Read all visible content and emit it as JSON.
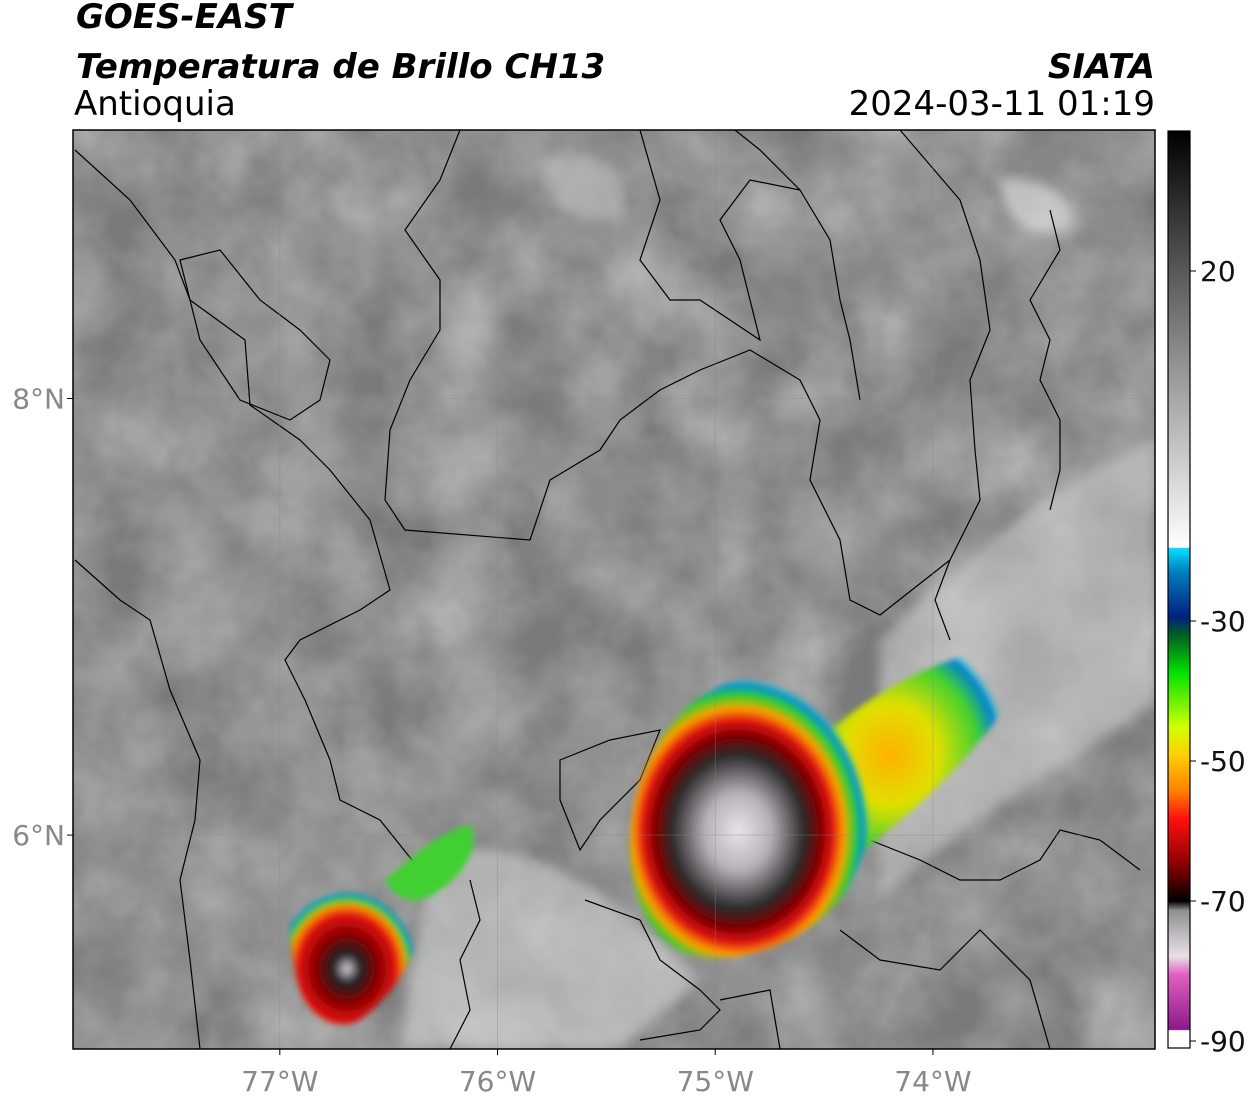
{
  "header": {
    "title": "GOES-EAST",
    "subtitle": "Temperatura de Brillo CH13",
    "region": "Antioquia",
    "brand": "SIATA",
    "datetime": "2024-03-11 01:19"
  },
  "map": {
    "xlim": [
      -77.95,
      -72.98
    ],
    "ylim": [
      5.02,
      9.23
    ],
    "xticks": [
      {
        "value": -77,
        "label": "77°W"
      },
      {
        "value": -76,
        "label": "76°W"
      },
      {
        "value": -75,
        "label": "75°W"
      },
      {
        "value": -74,
        "label": "74°W"
      }
    ],
    "yticks": [
      {
        "value": 8,
        "label": "8°N"
      },
      {
        "value": 6,
        "label": "6°N"
      }
    ],
    "grid": true
  },
  "colorbar": {
    "clim": [
      -91,
      40
    ],
    "ticks": [
      20,
      -30,
      -50,
      -70,
      -90
    ]
  }
}
